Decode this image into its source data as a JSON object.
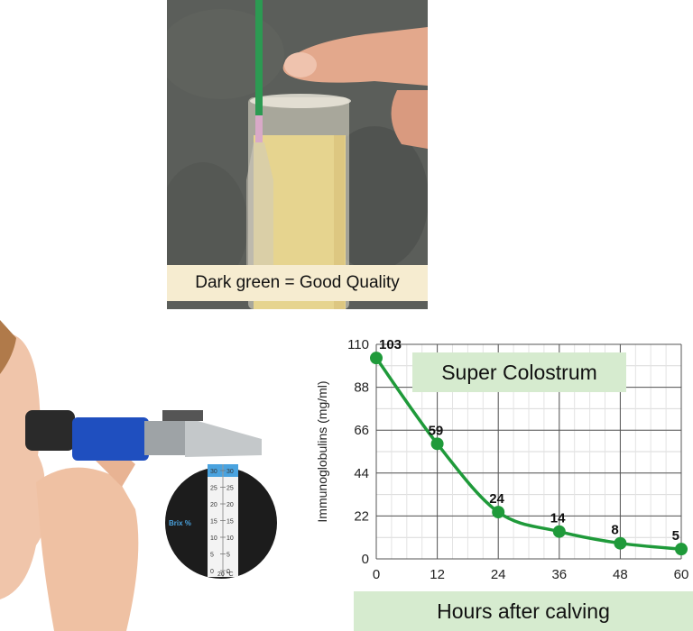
{
  "top_photo": {
    "caption": "Dark green = Good Quality"
  },
  "refractometer": {
    "scale_values": [
      "30",
      "25",
      "20",
      "15",
      "10",
      "5",
      "0"
    ],
    "scale_label": "Brix %",
    "temperature": "20 °C",
    "colors": {
      "body_blue": "#1f4fbf",
      "scale_blue": "#4aa3df"
    }
  },
  "labels": {
    "super_colostrum": "Super Colostrum",
    "hours_after_calving": "Hours after calving"
  },
  "chart_data": {
    "type": "line",
    "ylabel": "Immunoglobulins (mg/ml)",
    "xlabel": "",
    "x": [
      0,
      12,
      24,
      36,
      48,
      60
    ],
    "y": [
      103,
      59,
      24,
      14,
      8,
      5
    ],
    "data_labels": [
      "103",
      "59",
      "24",
      "14",
      "8",
      "5"
    ],
    "x_ticks": [
      "0",
      "12",
      "24",
      "36",
      "48",
      "60"
    ],
    "y_ticks": [
      "0",
      "22",
      "44",
      "66",
      "88",
      "110"
    ],
    "xlim": [
      0,
      60
    ],
    "ylim": [
      0,
      110
    ],
    "grid": true,
    "line_color": "#1f9a3a"
  }
}
